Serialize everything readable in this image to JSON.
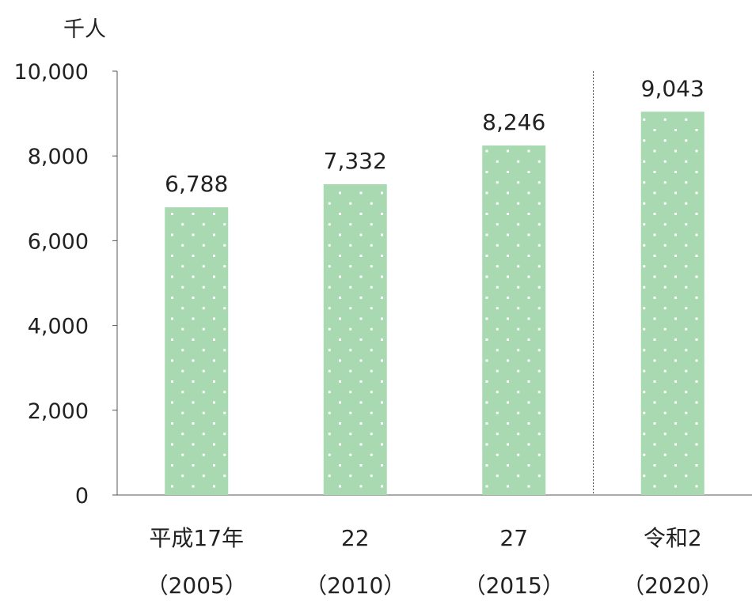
{
  "chart_data": {
    "type": "bar",
    "unit_label": "千人",
    "categories": [
      {
        "era": "平成17年",
        "year": "（2005）"
      },
      {
        "era": "22",
        "year": "（2010）"
      },
      {
        "era": "27",
        "year": "（2015）"
      },
      {
        "era": "令和2",
        "year": "（2020）"
      }
    ],
    "values": [
      6788,
      7332,
      8246,
      9043
    ],
    "value_labels": [
      "6,788",
      "7,332",
      "8,246",
      "9,043"
    ],
    "ylim": [
      0,
      10000
    ],
    "yticks": [
      0,
      2000,
      4000,
      6000,
      8000,
      10000
    ],
    "ytick_labels": [
      "0",
      "2,000",
      "4,000",
      "6,000",
      "8,000",
      "10,000"
    ],
    "separator_between_categories": [
      2,
      3
    ],
    "bar_color": "#a8d9b0",
    "grid": false
  }
}
